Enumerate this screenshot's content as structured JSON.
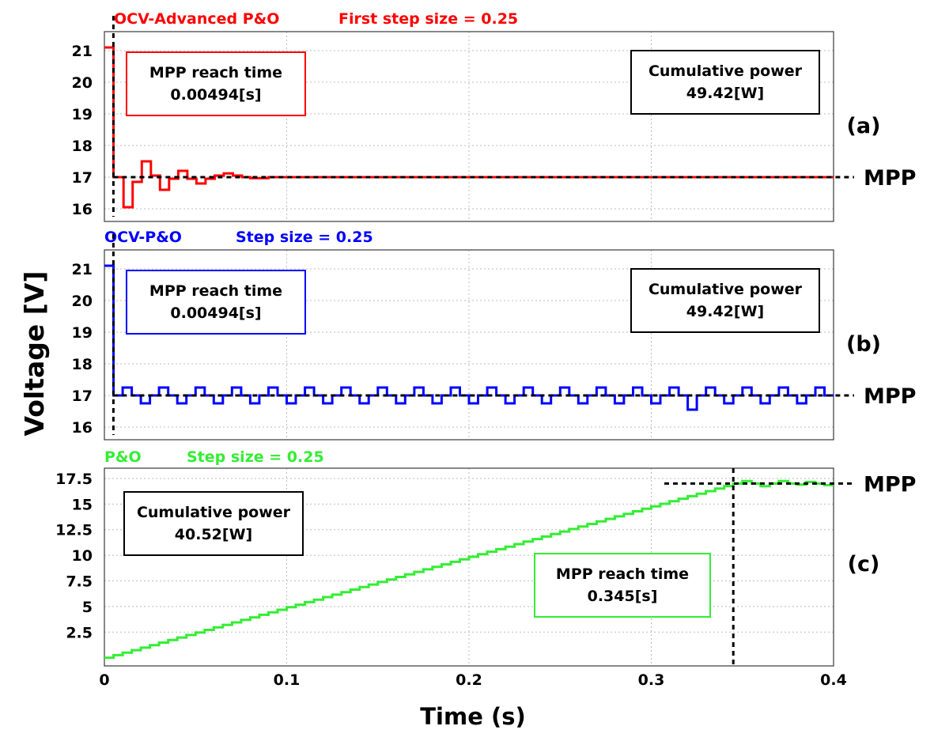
{
  "chart_data": [
    {
      "type": "line",
      "panel_label": "(a)",
      "header_left": "OCV-Advanced P&O",
      "header_right": "First step size = 0.25",
      "color": "#ff0000",
      "yticks": [
        "21",
        "20",
        "19",
        "18",
        "17",
        "16"
      ],
      "ylim": [
        15.6,
        21.6
      ],
      "xlim": [
        0,
        0.4
      ],
      "mpp_voltage": 17,
      "mpp_label": "MPP",
      "mpp_time_marker": 0.00494,
      "box1_line1": "MPP reach time",
      "box1_line2": "0.00494[s]",
      "box2_line1": "Cumulative power",
      "box2_line2": "49.42[W]",
      "series": [
        {
          "x": [
            0,
            0.005,
            0.005,
            0.0105,
            0.0105,
            0.0155,
            0.0155,
            0.0205,
            0.0205,
            0.0255,
            0.0255,
            0.0305,
            0.0305,
            0.0355,
            0.0355,
            0.0405,
            0.0405,
            0.0455,
            0.0455,
            0.0505,
            0.0505,
            0.0555,
            0.0555,
            0.0605,
            0.0605,
            0.0655,
            0.0655,
            0.0705,
            0.0705,
            0.0755,
            0.0755,
            0.08,
            0.08,
            0.09,
            0.09,
            0.4
          ],
          "y": [
            21.1,
            21.1,
            17.0,
            17.0,
            16.05,
            16.05,
            16.85,
            16.85,
            17.5,
            17.5,
            17.05,
            17.05,
            16.6,
            16.6,
            16.95,
            16.95,
            17.2,
            17.2,
            16.95,
            16.95,
            16.8,
            16.8,
            16.95,
            16.95,
            17.05,
            17.05,
            17.12,
            17.12,
            17.05,
            17.05,
            17.0,
            17.0,
            16.97,
            16.97,
            17.0,
            17.0
          ]
        }
      ]
    },
    {
      "type": "line",
      "panel_label": "(b)",
      "header_left": "OCV-P&O",
      "header_right": "Step size = 0.25",
      "color": "#0000ff",
      "yticks": [
        "21",
        "20",
        "19",
        "18",
        "17",
        "16"
      ],
      "ylim": [
        15.6,
        21.6
      ],
      "xlim": [
        0,
        0.4
      ],
      "mpp_voltage": 17,
      "mpp_label": "MPP",
      "mpp_time_marker": 0.00494,
      "box1_line1": "MPP reach time",
      "box1_line2": "0.00494[s]",
      "box2_line1": "Cumulative power",
      "box2_line2": "49.42[W]",
      "oscillation": {
        "period": 0.02,
        "high": 17.25,
        "mid": 17.0,
        "low": 16.75,
        "start": 0.005,
        "dip_at": 0.3125,
        "dip_value": 16.55
      },
      "series": [
        {
          "x": [
            0,
            0.005,
            0.005,
            0.4
          ],
          "y": [
            21.1,
            21.1,
            17.0,
            17.0
          ]
        }
      ]
    },
    {
      "type": "line",
      "panel_label": "(c)",
      "header_left": "P&O",
      "header_right": "Step size = 0.25",
      "color": "#33ee33",
      "yticks": [
        "17.5",
        "15",
        "12.5",
        "10",
        "7.5",
        "5",
        "2.5"
      ],
      "ylim": [
        -0.8,
        18.5
      ],
      "xlim": [
        0,
        0.4
      ],
      "mpp_voltage": 17,
      "mpp_label": "MPP",
      "mpp_time_marker": 0.345,
      "box1_line1": "Cumulative power",
      "box1_line2": "40.52[W]",
      "box2_line1": "MPP reach time",
      "box2_line2": "0.345[s]",
      "ramp": {
        "start_x": 0,
        "start_y": 0,
        "end_x": 0.345,
        "end_y": 17.0,
        "step_dt": 0.005
      },
      "series": [
        {
          "x": [
            0.345,
            0.35,
            0.35,
            0.355,
            0.355,
            0.36,
            0.36,
            0.365,
            0.365,
            0.37,
            0.37,
            0.375,
            0.375,
            0.38,
            0.38,
            0.385,
            0.385,
            0.39,
            0.39,
            0.395,
            0.395,
            0.4
          ],
          "y": [
            17.0,
            17.0,
            17.25,
            17.25,
            17.0,
            17.0,
            16.75,
            16.75,
            17.0,
            17.0,
            17.25,
            17.25,
            17.0,
            17.0,
            16.9,
            16.9,
            17.15,
            17.15,
            17.0,
            17.0,
            16.85,
            16.85
          ]
        }
      ]
    }
  ],
  "xticks": [
    "0",
    "0.1",
    "0.2",
    "0.3",
    "0.4"
  ],
  "xlabel": "Time (s)",
  "ylabel": "Voltage [V]",
  "grid": true
}
